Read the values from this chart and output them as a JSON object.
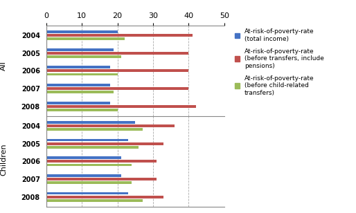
{
  "years": [
    "2004",
    "2005",
    "2006",
    "2007",
    "2008"
  ],
  "all_data": {
    "blue": [
      20,
      19,
      18,
      18,
      18
    ],
    "red": [
      41,
      40,
      40,
      40,
      42
    ],
    "green": [
      22,
      21,
      20,
      19,
      20
    ]
  },
  "children_data": {
    "blue": [
      25,
      23,
      21,
      21,
      23
    ],
    "red": [
      36,
      33,
      31,
      31,
      33
    ],
    "green": [
      27,
      26,
      24,
      24,
      27
    ]
  },
  "colors": {
    "blue": "#4472C4",
    "red": "#C0504D",
    "green": "#9BBB59"
  },
  "xlim": [
    0,
    50
  ],
  "xticks": [
    0,
    10,
    20,
    30,
    40,
    50
  ],
  "legend_labels": [
    "At-risk-of-poverty-rate\n(total income)",
    "At-risk-of-poverty-rate\n(before transfers, include\npensions)",
    "At-risk-of-poverty-rate\n(before child-related\ntransfers)"
  ],
  "group_label_all": "All",
  "group_label_children": "Children",
  "background_color": "#FFFFFF",
  "bar_height": 0.6,
  "bar_gap": 0.05
}
